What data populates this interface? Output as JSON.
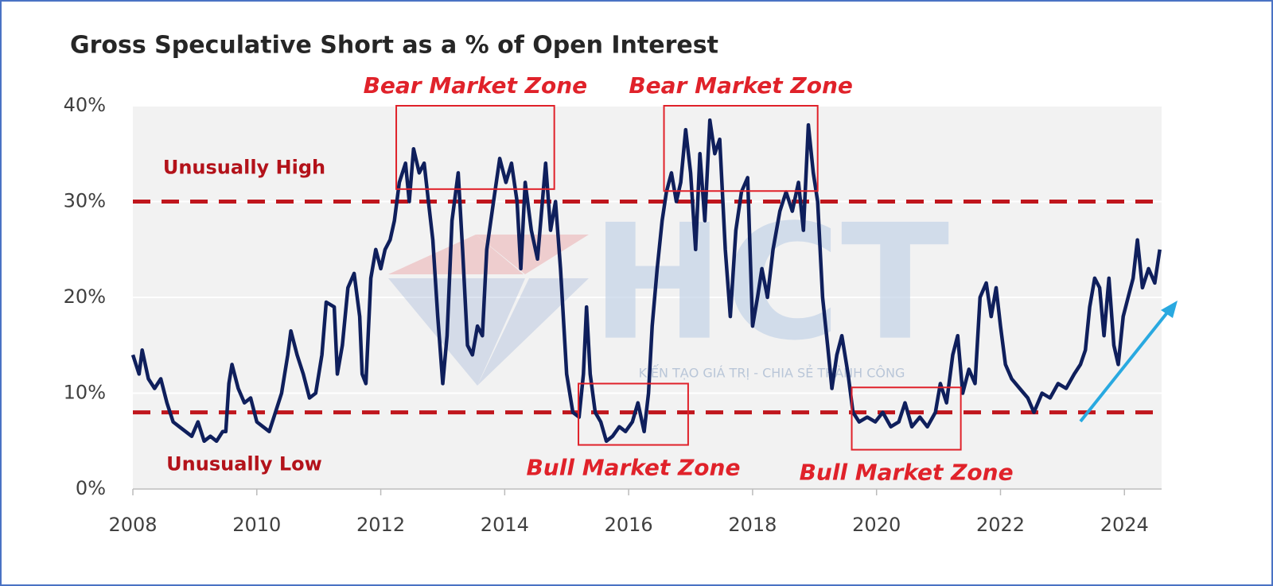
{
  "chart_data": {
    "type": "line",
    "title": "Gross Speculative Short as a % of Open Interest",
    "color": "#0f1f5c",
    "x": [
      2008.0,
      2008.1,
      2008.15,
      2008.25,
      2008.35,
      2008.45,
      2008.55,
      2008.65,
      2008.75,
      2008.85,
      2008.95,
      2009.05,
      2009.15,
      2009.25,
      2009.35,
      2009.45,
      2009.5,
      2009.55,
      2009.6,
      2009.7,
      2009.8,
      2009.9,
      2010.0,
      2010.1,
      2010.2,
      2010.3,
      2010.4,
      2010.5,
      2010.55,
      2010.65,
      2010.75,
      2010.85,
      2010.95,
      2011.05,
      2011.12,
      2011.25,
      2011.3,
      2011.38,
      2011.47,
      2011.57,
      2011.66,
      2011.7,
      2011.76,
      2011.84,
      2011.92,
      2012.0,
      2012.07,
      2012.15,
      2012.22,
      2012.3,
      2012.4,
      2012.46,
      2012.53,
      2012.62,
      2012.7,
      2012.77,
      2012.84,
      2012.92,
      2013.0,
      2013.07,
      2013.15,
      2013.25,
      2013.32,
      2013.4,
      2013.48,
      2013.56,
      2013.64,
      2013.71,
      2013.82,
      2013.92,
      2014.02,
      2014.11,
      2014.2,
      2014.26,
      2014.33,
      2014.43,
      2014.53,
      2014.66,
      2014.74,
      2014.82,
      2014.9,
      2015.0,
      2015.1,
      2015.2,
      2015.27,
      2015.32,
      2015.38,
      2015.46,
      2015.55,
      2015.64,
      2015.74,
      2015.85,
      2015.95,
      2016.06,
      2016.15,
      2016.25,
      2016.32,
      2016.38,
      2016.46,
      2016.54,
      2016.61,
      2016.69,
      2016.77,
      2016.84,
      2016.92,
      2017.0,
      2017.08,
      2017.15,
      2017.23,
      2017.31,
      2017.39,
      2017.47,
      2017.56,
      2017.64,
      2017.73,
      2017.82,
      2017.92,
      2018.0,
      2018.08,
      2018.15,
      2018.24,
      2018.33,
      2018.44,
      2018.54,
      2018.64,
      2018.74,
      2018.82,
      2018.9,
      2018.98,
      2019.05,
      2019.13,
      2019.21,
      2019.28,
      2019.36,
      2019.44,
      2019.54,
      2019.62,
      2019.72,
      2019.85,
      2019.98,
      2020.1,
      2020.23,
      2020.36,
      2020.46,
      2020.57,
      2020.7,
      2020.82,
      2020.95,
      2021.03,
      2021.13,
      2021.23,
      2021.31,
      2021.39,
      2021.49,
      2021.59,
      2021.67,
      2021.77,
      2021.85,
      2021.93,
      2022.0,
      2022.08,
      2022.18,
      2022.31,
      2022.44,
      2022.54,
      2022.67,
      2022.8,
      2022.93,
      2023.06,
      2023.19,
      2023.29,
      2023.37,
      2023.44,
      2023.52,
      2023.6,
      2023.67,
      2023.75,
      2023.83,
      2023.9,
      2023.98,
      2024.06,
      2024.14,
      2024.21,
      2024.29,
      2024.39,
      2024.49,
      2024.57
    ],
    "values": [
      14,
      12,
      14.5,
      11.5,
      10.5,
      11.5,
      9,
      7,
      6.5,
      6,
      5.5,
      7,
      5,
      5.5,
      5,
      6,
      6,
      11,
      13,
      10.5,
      9,
      9.5,
      7,
      6.5,
      6,
      8,
      10,
      14,
      16.5,
      14,
      12,
      9.5,
      10,
      14,
      19.5,
      19,
      12,
      15,
      21,
      22.5,
      18,
      12,
      11,
      22,
      25,
      23,
      25,
      26,
      28,
      32,
      34,
      30,
      35.5,
      33,
      34,
      30,
      26,
      18,
      11,
      16,
      28,
      33,
      25,
      15,
      14,
      17,
      16,
      25,
      30,
      34.5,
      32,
      34,
      30,
      23,
      32,
      27,
      24,
      34,
      27,
      30,
      23,
      12,
      8,
      7.5,
      12,
      19,
      12,
      8,
      7,
      5,
      5.5,
      6.5,
      6,
      7,
      9,
      6,
      10,
      17,
      23,
      28,
      31,
      33,
      30,
      32,
      37.5,
      33,
      25,
      35,
      28,
      38.5,
      35,
      36.5,
      25,
      18,
      27,
      31,
      32.5,
      17,
      20,
      23,
      20,
      25,
      29,
      31,
      29,
      32,
      27,
      38,
      33,
      30,
      20,
      15,
      10.5,
      14,
      16,
      12,
      8,
      7,
      7.5,
      7,
      8,
      6.5,
      7,
      9,
      6.5,
      7.5,
      6.5,
      8,
      11,
      9,
      14,
      16,
      10,
      12.5,
      11,
      20,
      21.5,
      18,
      21,
      17,
      13,
      11.5,
      10.5,
      9.5,
      8,
      10,
      9.5,
      11,
      10.5,
      12,
      13,
      14.5,
      19,
      22,
      21,
      16,
      22,
      15,
      13,
      18,
      20,
      22,
      26,
      21,
      23,
      21.5,
      25
    ],
    "xlim": [
      2008,
      2024.6
    ],
    "xticks": [
      2008,
      2010,
      2012,
      2014,
      2016,
      2018,
      2020,
      2022,
      2024
    ],
    "ylim": [
      0,
      40
    ],
    "yticks": [
      {
        "value": 0,
        "label": "0%"
      },
      {
        "value": 10,
        "label": "10%"
      },
      {
        "value": 20,
        "label": "20%"
      },
      {
        "value": 30,
        "label": "30%"
      },
      {
        "value": 40,
        "label": "40%"
      }
    ],
    "grid": true,
    "reference_lines": [
      {
        "value": 30,
        "label": "Unusually High",
        "color": "#c0161d"
      },
      {
        "value": 8,
        "label": "Unusually Low",
        "color": "#c0161d"
      }
    ],
    "zones": [
      {
        "label": "Bear Market Zone",
        "x": [
          2012.25,
          2014.8
        ],
        "y": [
          31.3,
          40
        ],
        "label_position": "above"
      },
      {
        "label": "Bear Market Zone",
        "x": [
          2016.57,
          2019.05
        ],
        "y": [
          31.1,
          40
        ],
        "label_position": "above"
      },
      {
        "label": "Bull Market Zone",
        "x": [
          2015.19,
          2016.96
        ],
        "y": [
          4.6,
          11
        ],
        "label_position": "below"
      },
      {
        "label": "Bull Market Zone",
        "x": [
          2019.6,
          2021.36
        ],
        "y": [
          4.1,
          10.6
        ],
        "label_position": "below"
      }
    ],
    "zone_color": "#e0222a",
    "watermark": {
      "logo": "HCT",
      "tagline": "KIẾN TẠO GIÁ TRỊ - CHIA SẺ THÀNH CÔNG"
    }
  }
}
